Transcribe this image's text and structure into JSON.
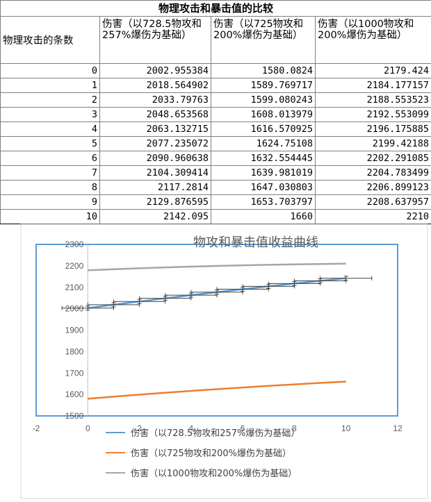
{
  "table": {
    "title": "物理攻击和暴击值的比较",
    "headers": [
      "物理攻击的条数",
      "伤害（以728.5物攻和257%爆伤为基础）",
      "伤害（以725物攻和200%爆伤为基础）",
      "伤害（以1000物攻和200%爆伤为基础）"
    ],
    "rows": [
      [
        "0",
        "2002.955384",
        "1580.0824",
        "2179.424"
      ],
      [
        "1",
        "2018.564902",
        "1589.769717",
        "2184.177157"
      ],
      [
        "2",
        "2033.79763",
        "1599.080243",
        "2188.553523"
      ],
      [
        "3",
        "2048.653568",
        "1608.013979",
        "2192.553099"
      ],
      [
        "4",
        "2063.132715",
        "1616.570925",
        "2196.175885"
      ],
      [
        "5",
        "2077.235072",
        "1624.75108",
        "2199.42188"
      ],
      [
        "6",
        "2090.960638",
        "1632.554445",
        "2202.291085"
      ],
      [
        "7",
        "2104.309414",
        "1639.981019",
        "2204.783499"
      ],
      [
        "8",
        "2117.2814",
        "1647.030803",
        "2206.899123"
      ],
      [
        "9",
        "2129.876595",
        "1653.703797",
        "2208.637957"
      ],
      [
        "10",
        "2142.095",
        "1660",
        "2210"
      ]
    ]
  },
  "chart_data": {
    "type": "line",
    "title": "物攻和暴击值收益曲线",
    "xlim": [
      -2,
      12
    ],
    "ylim": [
      1500,
      2300
    ],
    "x_ticks": [
      "-2",
      "0",
      "2",
      "4",
      "6",
      "8",
      "10",
      "12"
    ],
    "y_ticks": [
      "1500",
      "1600",
      "1700",
      "1800",
      "1900",
      "2000",
      "2100",
      "2200",
      "2300"
    ],
    "x": [
      0,
      1,
      2,
      3,
      4,
      5,
      6,
      7,
      8,
      9,
      10
    ],
    "series": [
      {
        "name": "伤害（以728.5物攻和257%爆伤为基础）",
        "color": "#5b9bd5",
        "error_bars": true,
        "values": [
          2002.955384,
          2018.564902,
          2033.79763,
          2048.653568,
          2063.132715,
          2077.235072,
          2090.960638,
          2104.309414,
          2117.2814,
          2129.876595,
          2142.095
        ]
      },
      {
        "name": "伤害（以725物攻和200%爆伤为基础）",
        "color": "#ed7d31",
        "error_bars": false,
        "values": [
          1580.0824,
          1589.769717,
          1599.080243,
          1608.013979,
          1616.570925,
          1624.75108,
          1632.554445,
          1639.981019,
          1647.030803,
          1653.703797,
          1660
        ]
      },
      {
        "name": "伤害（以1000物攻和200%爆伤为基础）",
        "color": "#a5a5a5",
        "error_bars": false,
        "values": [
          2179.424,
          2184.177157,
          2188.553523,
          2192.553099,
          2196.175885,
          2199.42188,
          2202.291085,
          2204.783499,
          2206.899123,
          2208.637957,
          2210
        ]
      }
    ],
    "grid": false,
    "legend_position": "bottom"
  }
}
